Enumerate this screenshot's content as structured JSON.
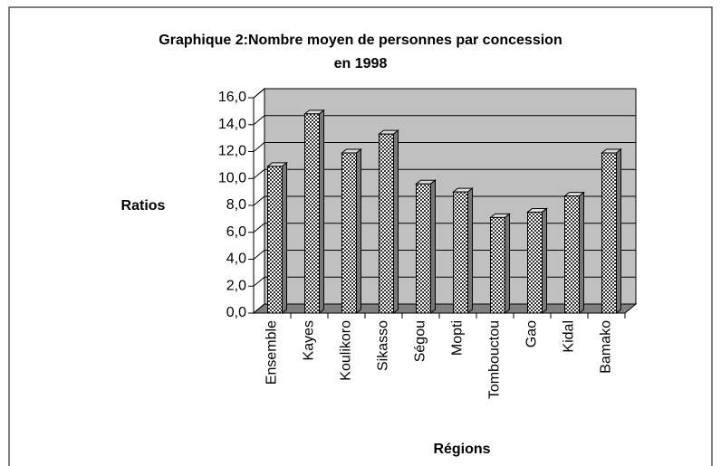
{
  "chart_data": {
    "type": "bar",
    "title": [
      "Graphique 2:Nombre moyen de personnes par concession",
      "en 1998"
    ],
    "y_label": "Ratios",
    "x_label": "Régions",
    "categories": [
      "Ensemble",
      "Kayes",
      "Koulikoro",
      "Sikasso",
      "Ségou",
      "Mopti",
      "Tombouctou",
      "Gao",
      "Kidal",
      "Bamako"
    ],
    "values": [
      10.9,
      14.8,
      11.9,
      13.3,
      9.6,
      9.0,
      7.1,
      7.5,
      8.7,
      11.9
    ],
    "ylim": [
      0,
      16
    ],
    "yticks": [
      {
        "value": 0,
        "label": "0,0"
      },
      {
        "value": 2,
        "label": "2,0"
      },
      {
        "value": 4,
        "label": "4,0"
      },
      {
        "value": 6,
        "label": "6,0"
      },
      {
        "value": 8,
        "label": "8,0"
      },
      {
        "value": 10,
        "label": "10,0"
      },
      {
        "value": 12,
        "label": "12,0"
      },
      {
        "value": 14,
        "label": "14,0"
      },
      {
        "value": 16,
        "label": "16,0"
      }
    ],
    "grid": true,
    "wall_color": "#c0c0c0",
    "floor_color": "#808080"
  }
}
